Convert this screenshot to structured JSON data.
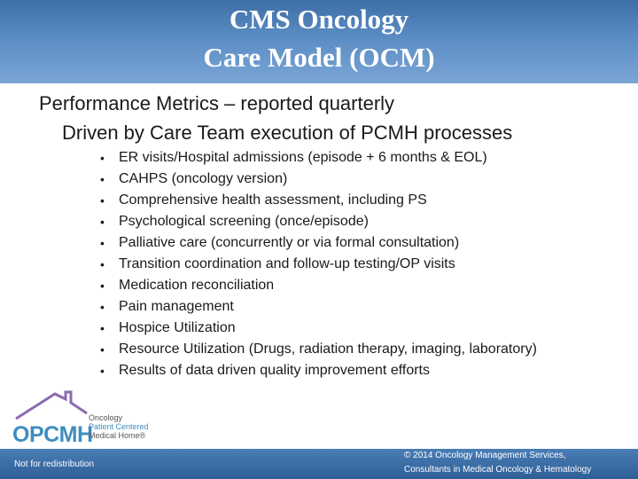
{
  "header": {
    "title_line1": "CMS Oncology",
    "title_line2": "Care Model (OCM)"
  },
  "content": {
    "heading": "Performance Metrics – reported quarterly",
    "subheading": "Driven by Care Team execution of PCMH processes",
    "bullets": [
      "ER visits/Hospital admissions (episode + 6 months & EOL)",
      "CAHPS (oncology version)",
      "Comprehensive health assessment, including PS",
      "Psychological screening (once/episode)",
      "Palliative care (concurrently or via formal consultation)",
      "Transition coordination and follow-up testing/OP visits",
      "Medication reconciliation",
      "Pain management",
      "Hospice Utilization",
      "Resource Utilization (Drugs, radiation therapy, imaging, laboratory)",
      "Results of data driven quality improvement efforts"
    ],
    "bullet_glyph": "•"
  },
  "logo": {
    "wordmark": "OPCMH",
    "line1": "Oncology",
    "line2": "Patient Centered",
    "line3": "Medical Home®"
  },
  "footer": {
    "left_text": "Not for redistribution",
    "right_line1": "© 2014 Oncology Management Services,",
    "right_line2": "Consultants in Medical Oncology & Hematology"
  },
  "colors": {
    "header_blue": "#5b8cc4",
    "footer_blue": "#2f5f97",
    "logo_blue": "#3f8dc0",
    "logo_roof": "#8a6bb0"
  }
}
